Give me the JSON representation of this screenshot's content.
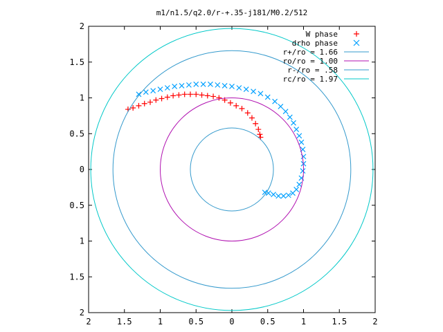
{
  "chart_data": {
    "type": "scatter",
    "title": "m1/n1.5/q2.0/r-+.35-j181/M0.2/512",
    "xlabel": "",
    "ylabel": "",
    "xlim": [
      -2,
      2
    ],
    "ylim": [
      -2,
      2
    ],
    "xticks": [
      -2,
      -1.5,
      -1,
      -0.5,
      0,
      0.5,
      1,
      1.5,
      2
    ],
    "yticks": [
      -2,
      -1.5,
      -1,
      -0.5,
      0,
      0.5,
      1,
      1.5,
      2
    ],
    "xtick_labels": [
      "2",
      "1.5",
      "1",
      "0.5",
      "0",
      "0.5",
      "1",
      "1.5",
      "2"
    ],
    "ytick_labels": [
      "2",
      "1.5",
      "1",
      "0.5",
      "0",
      "0.5",
      "1",
      "1.5",
      "2"
    ],
    "grid": false,
    "legend_position": "top-right",
    "series": [
      {
        "name": "W phase",
        "marker": "plus",
        "color": "#ff0000",
        "points": [
          [
            -1.45,
            0.84
          ],
          [
            -1.38,
            0.86
          ],
          [
            -1.3,
            0.89
          ],
          [
            -1.22,
            0.92
          ],
          [
            -1.14,
            0.94
          ],
          [
            -1.06,
            0.97
          ],
          [
            -0.98,
            0.99
          ],
          [
            -0.9,
            1.01
          ],
          [
            -0.82,
            1.03
          ],
          [
            -0.74,
            1.04
          ],
          [
            -0.66,
            1.05
          ],
          [
            -0.58,
            1.05
          ],
          [
            -0.5,
            1.05
          ],
          [
            -0.42,
            1.04
          ],
          [
            -0.34,
            1.03
          ],
          [
            -0.26,
            1.02
          ],
          [
            -0.18,
            1.0
          ],
          [
            -0.1,
            0.97
          ],
          [
            -0.02,
            0.93
          ],
          [
            0.06,
            0.89
          ],
          [
            0.14,
            0.85
          ],
          [
            0.22,
            0.79
          ],
          [
            0.28,
            0.72
          ],
          [
            0.33,
            0.64
          ],
          [
            0.37,
            0.56
          ],
          [
            0.39,
            0.49
          ],
          [
            0.4,
            0.45
          ]
        ]
      },
      {
        "name": "drho phase",
        "marker": "cross",
        "color": "#00a0ff",
        "points": [
          [
            -1.3,
            1.05
          ],
          [
            -1.2,
            1.08
          ],
          [
            -1.1,
            1.1
          ],
          [
            -1.0,
            1.12
          ],
          [
            -0.9,
            1.14
          ],
          [
            -0.8,
            1.16
          ],
          [
            -0.7,
            1.17
          ],
          [
            -0.6,
            1.18
          ],
          [
            -0.5,
            1.19
          ],
          [
            -0.4,
            1.19
          ],
          [
            -0.3,
            1.19
          ],
          [
            -0.2,
            1.18
          ],
          [
            -0.1,
            1.17
          ],
          [
            0.0,
            1.16
          ],
          [
            0.1,
            1.14
          ],
          [
            0.2,
            1.12
          ],
          [
            0.3,
            1.09
          ],
          [
            0.4,
            1.06
          ],
          [
            0.5,
            1.01
          ],
          [
            0.6,
            0.95
          ],
          [
            0.68,
            0.88
          ],
          [
            0.75,
            0.81
          ],
          [
            0.81,
            0.73
          ],
          [
            0.86,
            0.65
          ],
          [
            0.9,
            0.56
          ],
          [
            0.94,
            0.47
          ],
          [
            0.97,
            0.38
          ],
          [
            0.99,
            0.28
          ],
          [
            1.0,
            0.18
          ],
          [
            1.0,
            0.08
          ],
          [
            0.99,
            -0.02
          ],
          [
            0.97,
            -0.12
          ],
          [
            0.94,
            -0.21
          ],
          [
            0.9,
            -0.28
          ],
          [
            0.85,
            -0.33
          ],
          [
            0.79,
            -0.36
          ],
          [
            0.72,
            -0.37
          ],
          [
            0.65,
            -0.37
          ],
          [
            0.58,
            -0.35
          ],
          [
            0.51,
            -0.33
          ],
          [
            0.46,
            -0.32
          ]
        ]
      },
      {
        "name": "r+/ro = 1.66",
        "type": "circle",
        "radius": 1.66,
        "color": "#3399cc"
      },
      {
        "name": "ro/ro = 1.00",
        "type": "circle",
        "radius": 1.0,
        "color": "#b010b0"
      },
      {
        "name": "r-/ro = .58",
        "type": "circle",
        "radius": 0.58,
        "color": "#3399cc"
      },
      {
        "name": "rc/ro = 1.97",
        "type": "circle",
        "radius": 1.97,
        "color": "#00c8c8"
      }
    ]
  }
}
